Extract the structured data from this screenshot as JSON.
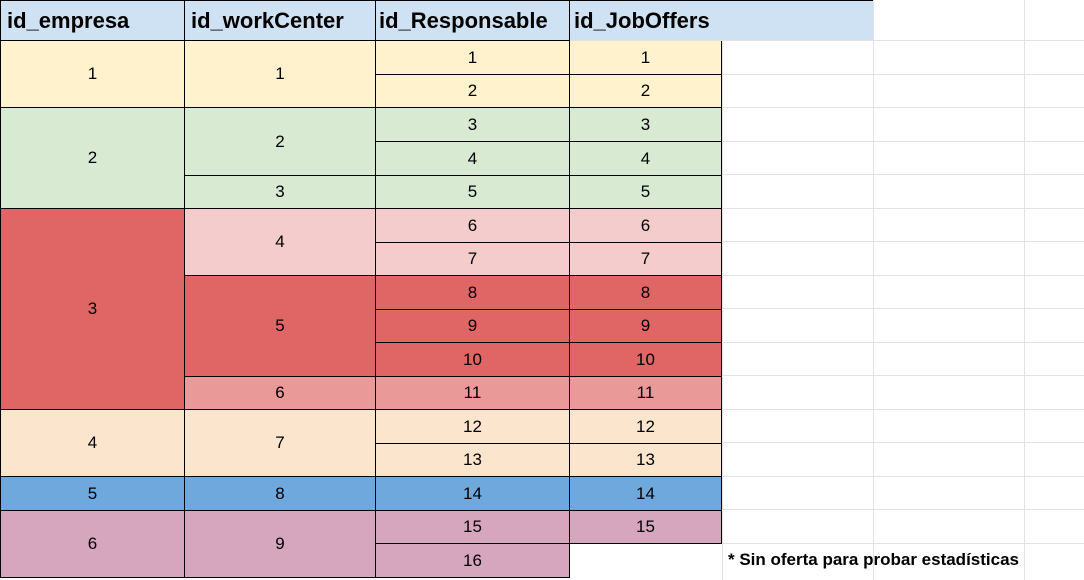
{
  "headers": {
    "id_empresa": "id_empresa",
    "id_workCenter": "id_workCenter",
    "id_responsable": "id_Responsable",
    "id_joboffers": "id_JobOffers"
  },
  "empresa": [
    "1",
    "2",
    "3",
    "4",
    "5",
    "6"
  ],
  "workcenter": [
    "1",
    "2",
    "3",
    "4",
    "5",
    "6",
    "7",
    "8",
    "9"
  ],
  "responsable": [
    "1",
    "2",
    "3",
    "4",
    "5",
    "6",
    "7",
    "8",
    "9",
    "10",
    "11",
    "12",
    "13",
    "14",
    "15",
    "16"
  ],
  "joboffers": [
    "1",
    "2",
    "3",
    "4",
    "5",
    "6",
    "7",
    "8",
    "9",
    "10",
    "11",
    "12",
    "13",
    "14",
    "15"
  ],
  "note": "* Sin oferta para probar estadísticas",
  "colors": {
    "header": "#cfe2f3",
    "empresa_1": "#fff2cc",
    "empresa_2": "#d9ead3",
    "empresa_3": "#e06666",
    "workcenter_4": "#f4cccc",
    "workcenter_6": "#ea9999",
    "empresa_4": "#fce5cd",
    "empresa_5": "#6fa8dc",
    "empresa_6": "#d5a6bd"
  }
}
